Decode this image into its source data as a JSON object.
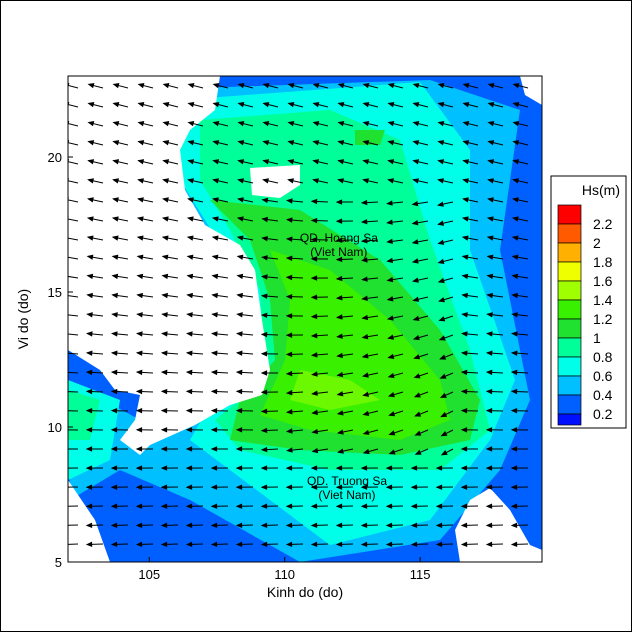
{
  "chart_data": {
    "type": "heatmap",
    "xlabel": "Kinh do (do)",
    "ylabel": "Vi do (do)",
    "xlim": [
      102,
      119.5
    ],
    "ylim": [
      5,
      23
    ],
    "xticks": [
      "105",
      "110",
      "115"
    ],
    "xtick_values": [
      105,
      110,
      115
    ],
    "yticks": [
      "5",
      "10",
      "15",
      "20"
    ],
    "ytick_values": [
      5,
      10,
      15,
      20
    ],
    "annotations": [
      {
        "line1": "QD. Hoang Sa",
        "line2": "(Viet Nam)",
        "lon": 112,
        "lat": 16.6
      },
      {
        "line1": "QD. Truong Sa",
        "line2": "(Viet Nam)",
        "lon": 112.3,
        "lat": 7.6
      }
    ],
    "legend": {
      "title": "Hs(m)",
      "placement": "right",
      "levels": [
        "2.2",
        "2",
        "1.8",
        "1.6",
        "1.4",
        "1.2",
        "1",
        "0.8",
        "0.6",
        "0.4",
        "0.2"
      ],
      "colors": [
        "#ff0000",
        "#ff5a00",
        "#ffb000",
        "#f0ff00",
        "#a0ff00",
        "#38f000",
        "#20e030",
        "#00ff98",
        "#00ffe8",
        "#00c0ff",
        "#0060ff",
        "#0010ff"
      ]
    }
  }
}
